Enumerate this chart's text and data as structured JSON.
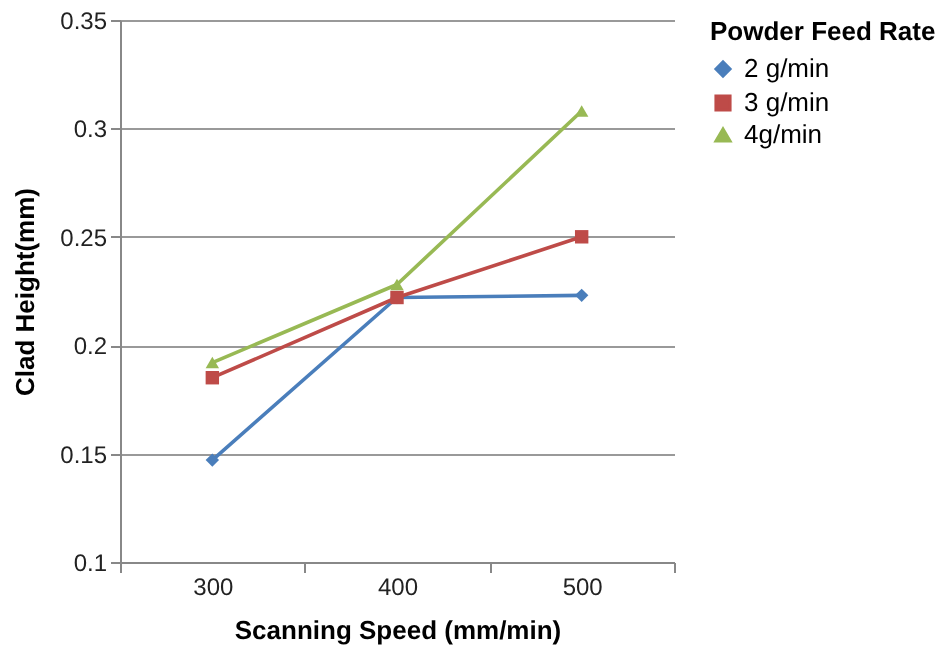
{
  "chart_data": {
    "type": "line",
    "xlabel": "Scanning Speed (mm/min)",
    "ylabel": "Clad  Height(mm)",
    "legend_title": "Powder Feed Rate",
    "categories": [
      "300",
      "400",
      "500"
    ],
    "series": [
      {
        "name": "2 g/min",
        "color": "#4a7ebb",
        "marker": "diamond",
        "values": [
          0.147,
          0.222,
          0.223
        ]
      },
      {
        "name": "3 g/min",
        "color": "#be4b48",
        "marker": "square",
        "values": [
          0.185,
          0.222,
          0.25
        ]
      },
      {
        "name": "4g/min",
        "color": "#98b954",
        "marker": "triangle",
        "values": [
          0.192,
          0.228,
          0.308
        ]
      }
    ],
    "ylim": [
      0.1,
      0.35
    ],
    "yticks": [
      0.1,
      0.15,
      0.2,
      0.25,
      0.3,
      0.35
    ],
    "grid": "y",
    "legend": "right"
  }
}
